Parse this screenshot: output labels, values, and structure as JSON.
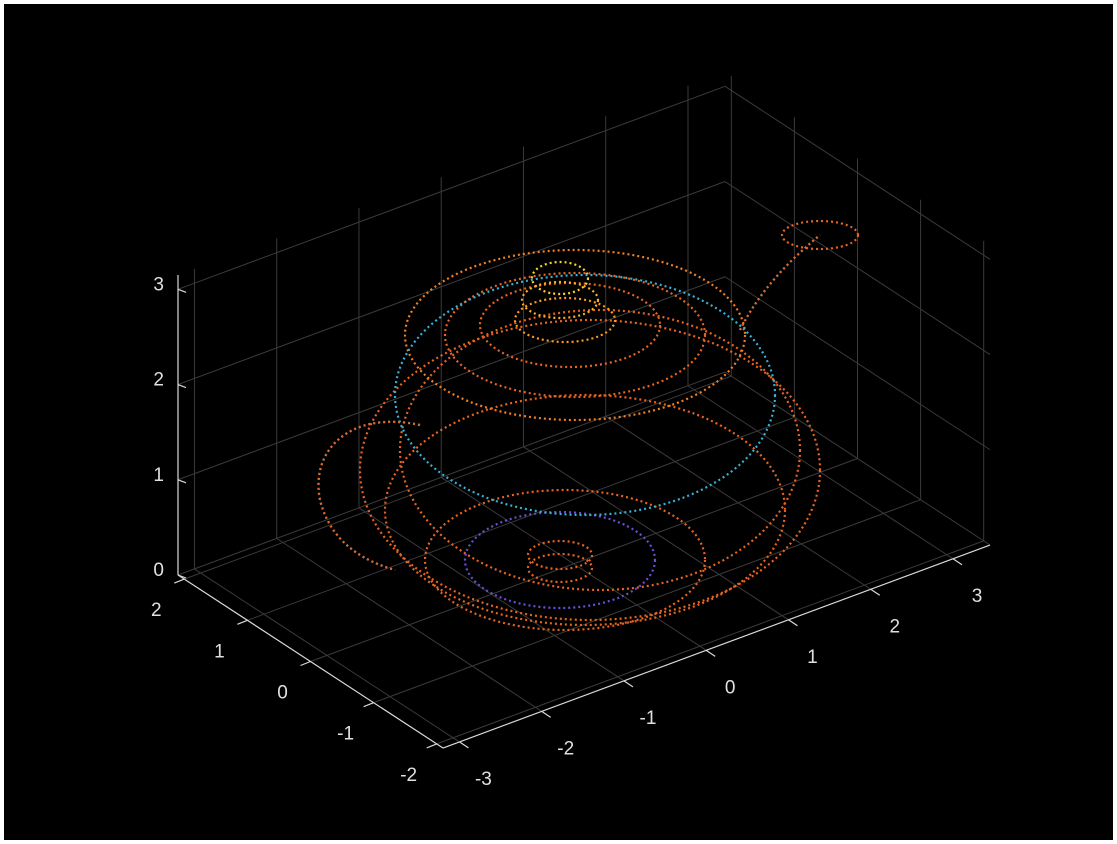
{
  "chart_data": {
    "type": "quiver3",
    "xlim": [
      -3.2,
      3.45
    ],
    "xticks": [
      -3,
      -2,
      -1,
      0,
      1,
      2,
      3
    ],
    "ylim": [
      -2.1,
      2.1
    ],
    "yticks": [
      -2,
      -1,
      0,
      1,
      2
    ],
    "zlim": [
      0,
      3.15
    ],
    "zticks": [
      0,
      1,
      2,
      3
    ],
    "grid": true
  }
}
